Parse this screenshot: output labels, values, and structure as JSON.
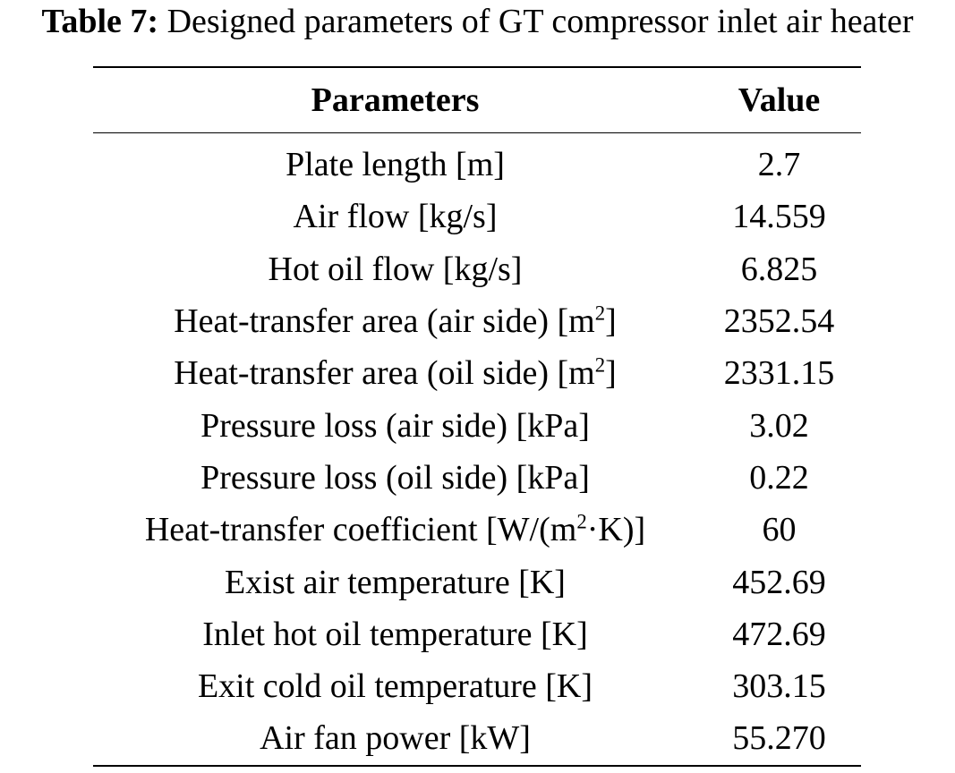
{
  "caption": {
    "label": "Table 7:",
    "text": "Designed parameters of GT compressor inlet air heater"
  },
  "table": {
    "headers": [
      "Parameters",
      "Value"
    ],
    "rows": [
      {
        "param": "Plate length [m]",
        "value": "2.7"
      },
      {
        "param": "Air flow [kg/s]",
        "value": "14.559"
      },
      {
        "param": "Hot oil flow [kg/s]",
        "value": "6.825"
      },
      {
        "param_pre": "Heat-transfer area (air side) [m",
        "sup": "2",
        "param_post": "]",
        "value": "2352.54"
      },
      {
        "param_pre": "Heat-transfer area (oil side) [m",
        "sup": "2",
        "param_post": "]",
        "value": "2331.15"
      },
      {
        "param": "Pressure loss (air side) [kPa]",
        "value": "3.02"
      },
      {
        "param": "Pressure loss (oil side) [kPa]",
        "value": "0.22"
      },
      {
        "param_pre": "Heat-transfer coefficient [W/(m",
        "sup": "2",
        "param_post": "·K)]",
        "value": "60"
      },
      {
        "param": "Exist air temperature [K]",
        "value": "452.69"
      },
      {
        "param": "Inlet hot oil temperature [K]",
        "value": "472.69"
      },
      {
        "param": "Exit cold oil temperature [K]",
        "value": "303.15"
      },
      {
        "param": "Air fan power [kW]",
        "value": "55.270"
      }
    ]
  }
}
